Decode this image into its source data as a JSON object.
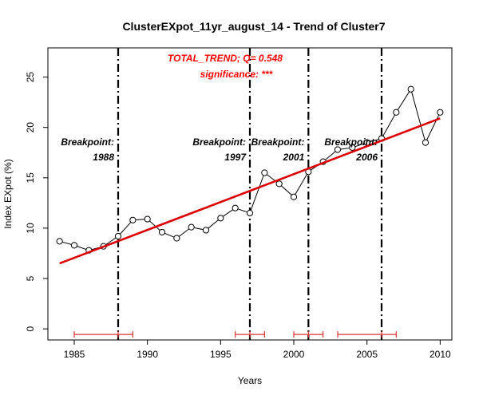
{
  "chart_data": {
    "type": "line",
    "title": "ClusterEXpot_11yr_august_14  -  Trend of Cluster7",
    "xlabel": "Years",
    "ylabel": "Index EXpot (%)",
    "xlim": [
      1983.2,
      2010.8
    ],
    "ylim": [
      -1.1,
      27.9
    ],
    "x_ticks": [
      1985,
      1990,
      1995,
      2000,
      2005,
      2010
    ],
    "y_ticks": [
      0,
      5,
      10,
      15,
      20,
      25
    ],
    "grid": false,
    "series": [
      {
        "color": "#000000",
        "marker": "open-circle",
        "x": [
          1984,
          1985,
          1986,
          1987,
          1988,
          1989,
          1990,
          1991,
          1992,
          1993,
          1994,
          1995,
          1996,
          1997,
          1998,
          1999,
          2000,
          2001,
          2002,
          2003,
          2004,
          2005,
          2006,
          2007,
          2008,
          2009,
          2010
        ],
        "y": [
          8.7,
          8.3,
          7.8,
          8.2,
          9.2,
          10.8,
          10.9,
          9.6,
          9.0,
          10.1,
          9.8,
          11.0,
          12.0,
          11.5,
          15.5,
          14.4,
          13.1,
          15.6,
          16.6,
          17.8,
          18.0,
          18.5,
          18.9,
          21.5,
          23.8,
          18.5,
          21.5
        ]
      }
    ],
    "trend_line": {
      "color": "#dd0000",
      "x": [
        1984,
        2010
      ],
      "y": [
        6.5,
        20.9
      ]
    },
    "breakpoints": [
      {
        "year": 1988,
        "label": "Breakpoint:",
        "year_label": "1988",
        "ci": [
          1985,
          1989
        ]
      },
      {
        "year": 1997,
        "label": "Breakpoint:",
        "year_label": "1997",
        "ci": [
          1996,
          1998
        ]
      },
      {
        "year": 2001,
        "label": "Breakpoint:",
        "year_label": "2001",
        "ci": [
          2000,
          2002
        ]
      },
      {
        "year": 2006,
        "label": "Breakpoint:",
        "year_label": "2006",
        "ci": [
          2003,
          2007
        ]
      }
    ],
    "ci_y": 0,
    "ci_color": "#dd3333",
    "annotation_trend": "TOTAL_TREND;  Q= 0.548",
    "annotation_significance": "significance: ***"
  }
}
